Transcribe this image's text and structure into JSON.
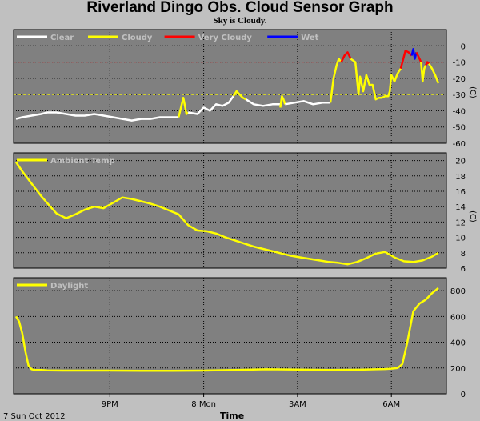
{
  "title": "Riverland Dingo Obs. Cloud Sensor Graph",
  "subtitle": "Sky is Cloudy.",
  "x_axis": {
    "label": "Time",
    "date_label": "7 Sun Oct 2012",
    "ticks": [
      {
        "label": "9PM",
        "hours": 3.0
      },
      {
        "label": "8 Mon",
        "hours": 6.0
      },
      {
        "label": "3AM",
        "hours": 9.0
      },
      {
        "label": "6AM",
        "hours": 12.0
      }
    ],
    "span_hours": 13.5
  },
  "colors": {
    "clear": "#ffffff",
    "cloudy": "#ffff00",
    "very_cloudy": "#ff0000",
    "wet": "#0000ff",
    "panel_bg": "#808080",
    "page_bg": "#c0c0c0",
    "grid": "#000000",
    "axis_text": "#000000",
    "legend_text": "#c0c0c0",
    "threshold_cloudy": "#ffff00",
    "threshold_very_cloudy": "#ff0000"
  },
  "chart_data": [
    {
      "type": "line",
      "name": "sky-temperature",
      "legend": [
        {
          "label": "Clear",
          "color": "#ffffff"
        },
        {
          "label": "Cloudy",
          "color": "#ffff00"
        },
        {
          "label": "Very Cloudy",
          "color": "#ff0000"
        },
        {
          "label": "Wet",
          "color": "#0000ff"
        }
      ],
      "ylabel": "(C)",
      "ylim": [
        -60,
        10
      ],
      "yticks": [
        0,
        -10,
        -20,
        -30,
        -40,
        -50,
        -60
      ],
      "thresholds": [
        {
          "value": -10,
          "color": "#ff0000"
        },
        {
          "value": -30,
          "color": "#ffff00"
        }
      ],
      "segments": [
        {
          "state": "clear",
          "color": "#ffffff",
          "x": [
            0,
            0.2,
            0.5,
            0.8,
            1.0,
            1.3,
            1.6,
            1.9,
            2.2,
            2.5,
            2.8,
            3.1,
            3.4,
            3.7,
            4.0,
            4.3,
            4.6,
            4.9,
            5.2
          ],
          "y": [
            -45,
            -44,
            -43,
            -42,
            -41,
            -41,
            -42,
            -43,
            -43,
            -42,
            -43,
            -44,
            -45,
            -46,
            -45,
            -45,
            -44,
            -44,
            -44
          ]
        },
        {
          "state": "cloudy",
          "color": "#ffff00",
          "x": [
            5.2,
            5.3,
            5.35,
            5.45,
            5.5
          ],
          "y": [
            -44,
            -36,
            -32,
            -42,
            -41
          ]
        },
        {
          "state": "clear",
          "color": "#ffffff",
          "x": [
            5.5,
            5.8,
            6.0,
            6.2,
            6.4,
            6.6,
            6.8,
            6.95
          ],
          "y": [
            -41,
            -42,
            -38,
            -40,
            -36,
            -37,
            -35,
            -31
          ]
        },
        {
          "state": "cloudy",
          "color": "#ffff00",
          "x": [
            6.95,
            7.05,
            7.25,
            7.35
          ],
          "y": [
            -31,
            -28,
            -32,
            -33
          ]
        },
        {
          "state": "clear",
          "color": "#ffffff",
          "x": [
            7.35,
            7.6,
            7.9,
            8.2,
            8.45
          ],
          "y": [
            -33,
            -36,
            -37,
            -36,
            -36
          ]
        },
        {
          "state": "cloudy",
          "color": "#ffff00",
          "x": [
            8.45,
            8.5,
            8.55,
            8.6
          ],
          "y": [
            -38,
            -31,
            -33,
            -36
          ]
        },
        {
          "state": "clear",
          "color": "#ffffff",
          "x": [
            8.6,
            8.9,
            9.2,
            9.5,
            9.8,
            10.05
          ],
          "y": [
            -36,
            -35,
            -34,
            -36,
            -35,
            -35
          ]
        },
        {
          "state": "cloudy",
          "color": "#ffff00",
          "x": [
            10.05,
            10.15,
            10.25,
            10.32,
            10.4
          ],
          "y": [
            -35,
            -20,
            -12,
            -8,
            -10
          ]
        },
        {
          "state": "very_cloudy",
          "color": "#ff0000",
          "x": [
            10.4,
            10.5,
            10.6,
            10.7
          ],
          "y": [
            -10,
            -6,
            -4,
            -8
          ]
        },
        {
          "state": "cloudy",
          "color": "#ffff00",
          "x": [
            10.7,
            10.85,
            10.95,
            11.0,
            11.1,
            11.2,
            11.3,
            11.4,
            11.5,
            11.6,
            11.7,
            11.8,
            11.9,
            11.95,
            12.0,
            12.1,
            12.2,
            12.3
          ],
          "y": [
            -8,
            -10,
            -30,
            -19,
            -28,
            -18,
            -24,
            -24,
            -33,
            -32,
            -32,
            -31,
            -31,
            -28,
            -18,
            -22,
            -17,
            -14
          ]
        },
        {
          "state": "very_cloudy",
          "color": "#ff0000",
          "x": [
            12.3,
            12.45,
            12.55,
            12.65
          ],
          "y": [
            -14,
            -3,
            -4,
            -6
          ]
        },
        {
          "state": "wet",
          "color": "#0000ff",
          "x": [
            12.65,
            12.7,
            12.75,
            12.8
          ],
          "y": [
            -6,
            -2,
            -8,
            -4
          ]
        },
        {
          "state": "very_cloudy",
          "color": "#ff0000",
          "x": [
            12.8,
            12.9,
            12.95
          ],
          "y": [
            -4,
            -8,
            -10
          ]
        },
        {
          "state": "cloudy",
          "color": "#ffff00",
          "x": [
            12.95,
            13.0,
            13.05,
            13.1
          ],
          "y": [
            -10,
            -22,
            -14,
            -12
          ]
        },
        {
          "state": "very_cloudy",
          "color": "#ff0000",
          "x": [
            13.1,
            13.15,
            13.2
          ],
          "y": [
            -12,
            -10,
            -11
          ]
        },
        {
          "state": "cloudy",
          "color": "#ffff00",
          "x": [
            13.2,
            13.3,
            13.4,
            13.5
          ],
          "y": [
            -11,
            -14,
            -18,
            -23
          ]
        }
      ]
    },
    {
      "type": "line",
      "name": "ambient-temp",
      "legend": [
        {
          "label": "Ambient Temp",
          "color": "#ffff00"
        }
      ],
      "ylabel": "(C)",
      "ylim": [
        6,
        21
      ],
      "yticks": [
        20,
        18,
        16,
        14,
        12,
        10,
        8,
        6
      ],
      "series": [
        {
          "name": "Ambient Temp",
          "color": "#ffff00",
          "x": [
            0,
            0.2,
            0.5,
            0.8,
            1.1,
            1.3,
            1.6,
            1.9,
            2.2,
            2.5,
            2.8,
            3.1,
            3.4,
            3.7,
            4.0,
            4.3,
            4.6,
            4.9,
            5.2,
            5.5,
            5.8,
            6.1,
            6.4,
            6.7,
            7.0,
            7.3,
            7.6,
            7.9,
            8.2,
            8.5,
            8.8,
            9.1,
            9.4,
            9.7,
            10.0,
            10.3,
            10.6,
            10.9,
            11.2,
            11.5,
            11.8,
            12.1,
            12.4,
            12.7,
            13.0,
            13.3,
            13.5
          ],
          "y": [
            19.8,
            18.6,
            17.0,
            15.4,
            14.0,
            13.1,
            12.5,
            13.0,
            13.6,
            14.0,
            13.8,
            14.5,
            15.2,
            15.0,
            14.7,
            14.4,
            14.0,
            13.5,
            13.0,
            11.6,
            10.9,
            10.8,
            10.5,
            10.0,
            9.6,
            9.2,
            8.8,
            8.5,
            8.2,
            7.9,
            7.6,
            7.4,
            7.2,
            7.0,
            6.8,
            6.7,
            6.5,
            6.8,
            7.3,
            7.9,
            8.1,
            7.4,
            6.9,
            6.8,
            7.0,
            7.5,
            8.0
          ]
        }
      ]
    },
    {
      "type": "line",
      "name": "daylight",
      "legend": [
        {
          "label": "Daylight",
          "color": "#ffff00"
        }
      ],
      "ylabel": "",
      "ylim": [
        0,
        900
      ],
      "yticks": [
        800,
        600,
        400,
        200,
        0
      ],
      "series": [
        {
          "name": "Daylight",
          "color": "#ffff00",
          "x": [
            0,
            0.1,
            0.2,
            0.3,
            0.4,
            0.5,
            0.6,
            0.8,
            1.0,
            1.5,
            2.0,
            3.0,
            4.0,
            5.0,
            6.0,
            7.0,
            8.0,
            9.0,
            10.0,
            11.0,
            11.5,
            11.8,
            12.0,
            12.2,
            12.35,
            12.5,
            12.7,
            12.9,
            13.1,
            13.3,
            13.5
          ],
          "y": [
            600,
            560,
            470,
            330,
            220,
            190,
            185,
            185,
            182,
            180,
            180,
            180,
            178,
            178,
            180,
            185,
            190,
            188,
            185,
            187,
            190,
            192,
            195,
            200,
            230,
            390,
            640,
            700,
            730,
            780,
            820
          ]
        }
      ]
    }
  ]
}
